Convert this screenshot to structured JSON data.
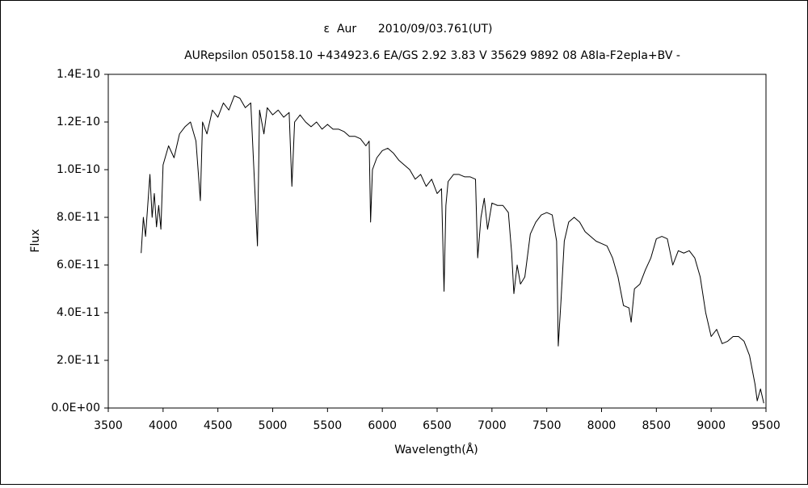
{
  "chart_data": {
    "type": "line",
    "title": "ε  Aur      2010/09/03.761(UT)",
    "subtitle": "AURepsilon 050158.10 +434923.6 EA/GS 2.92 3.83 V 35629 9892 08 A8Ia-F2epIa+BV -",
    "x_label": "Wavelength(Å)",
    "y_label": "Flux",
    "color": "#000000",
    "grid": false,
    "xlim": [
      3500,
      9500
    ],
    "xticks": [
      3500,
      4000,
      4500,
      5000,
      5500,
      6000,
      6500,
      7000,
      7500,
      8000,
      8500,
      9000,
      9500
    ],
    "ylim": [
      0,
      1.4e-10
    ],
    "yticks": [
      {
        "value": 0,
        "label": "0.0E+00"
      },
      {
        "value": 2e-11,
        "label": "2.0E-11"
      },
      {
        "value": 4e-11,
        "label": "4.0E-11"
      },
      {
        "value": 6e-11,
        "label": "6.0E-11"
      },
      {
        "value": 8e-11,
        "label": "8.0E-11"
      },
      {
        "value": 1e-10,
        "label": "1.0E-10"
      },
      {
        "value": 1.2e-10,
        "label": "1.2E-10"
      },
      {
        "value": 1.4e-10,
        "label": "1.4E-10"
      }
    ],
    "x": [
      3800,
      3820,
      3840,
      3860,
      3880,
      3900,
      3920,
      3940,
      3960,
      3980,
      4000,
      4050,
      4100,
      4150,
      4200,
      4250,
      4300,
      4340,
      4360,
      4400,
      4450,
      4500,
      4550,
      4600,
      4650,
      4700,
      4750,
      4800,
      4861,
      4880,
      4920,
      4950,
      5000,
      5050,
      5100,
      5150,
      5175,
      5200,
      5250,
      5300,
      5350,
      5400,
      5450,
      5500,
      5550,
      5600,
      5650,
      5700,
      5750,
      5800,
      5850,
      5880,
      5893,
      5910,
      5950,
      6000,
      6050,
      6100,
      6150,
      6200,
      6250,
      6300,
      6350,
      6400,
      6450,
      6500,
      6540,
      6563,
      6580,
      6600,
      6650,
      6700,
      6750,
      6800,
      6850,
      6870,
      6900,
      6930,
      6960,
      7000,
      7050,
      7100,
      7150,
      7180,
      7200,
      7230,
      7260,
      7300,
      7350,
      7400,
      7450,
      7500,
      7550,
      7590,
      7605,
      7630,
      7660,
      7700,
      7750,
      7800,
      7850,
      7900,
      7950,
      8000,
      8050,
      8100,
      8150,
      8200,
      8250,
      8270,
      8300,
      8350,
      8400,
      8450,
      8500,
      8550,
      8600,
      8650,
      8700,
      8750,
      8800,
      8850,
      8900,
      8950,
      9000,
      9050,
      9100,
      9150,
      9200,
      9250,
      9300,
      9350,
      9400,
      9420,
      9450,
      9480
    ],
    "values": [
      6.5e-11,
      8e-11,
      7.2e-11,
      8.5e-11,
      9.8e-11,
      8e-11,
      9e-11,
      7.6e-11,
      8.5e-11,
      7.5e-11,
      1.02e-10,
      1.1e-10,
      1.05e-10,
      1.15e-10,
      1.18e-10,
      1.2e-10,
      1.12e-10,
      8.7e-11,
      1.2e-10,
      1.15e-10,
      1.25e-10,
      1.22e-10,
      1.28e-10,
      1.25e-10,
      1.31e-10,
      1.3e-10,
      1.26e-10,
      1.28e-10,
      6.8e-11,
      1.25e-10,
      1.15e-10,
      1.26e-10,
      1.23e-10,
      1.25e-10,
      1.22e-10,
      1.24e-10,
      9.3e-11,
      1.2e-10,
      1.23e-10,
      1.2e-10,
      1.18e-10,
      1.2e-10,
      1.17e-10,
      1.19e-10,
      1.17e-10,
      1.17e-10,
      1.16e-10,
      1.14e-10,
      1.14e-10,
      1.13e-10,
      1.1e-10,
      1.12e-10,
      7.8e-11,
      1e-10,
      1.05e-10,
      1.08e-10,
      1.09e-10,
      1.07e-10,
      1.04e-10,
      1.02e-10,
      1e-10,
      9.6e-11,
      9.8e-11,
      9.3e-11,
      9.6e-11,
      9e-11,
      9.2e-11,
      4.9e-11,
      8.5e-11,
      9.5e-11,
      9.8e-11,
      9.8e-11,
      9.7e-11,
      9.7e-11,
      9.6e-11,
      6.3e-11,
      8e-11,
      8.8e-11,
      7.5e-11,
      8.6e-11,
      8.5e-11,
      8.5e-11,
      8.2e-11,
      6.5e-11,
      4.8e-11,
      6e-11,
      5.2e-11,
      5.5e-11,
      7.3e-11,
      7.8e-11,
      8.1e-11,
      8.2e-11,
      8.1e-11,
      7e-11,
      2.6e-11,
      4.5e-11,
      7e-11,
      7.8e-11,
      8e-11,
      7.8e-11,
      7.4e-11,
      7.2e-11,
      7e-11,
      6.9e-11,
      6.8e-11,
      6.3e-11,
      5.5e-11,
      4.3e-11,
      4.2e-11,
      3.6e-11,
      5e-11,
      5.2e-11,
      5.8e-11,
      6.3e-11,
      7.1e-11,
      7.2e-11,
      7.1e-11,
      6e-11,
      6.6e-11,
      6.5e-11,
      6.6e-11,
      6.3e-11,
      5.5e-11,
      4e-11,
      3e-11,
      3.3e-11,
      2.7e-11,
      2.8e-11,
      3e-11,
      3e-11,
      2.8e-11,
      2.2e-11,
      1e-11,
      3e-12,
      8e-12,
      2e-12
    ]
  }
}
